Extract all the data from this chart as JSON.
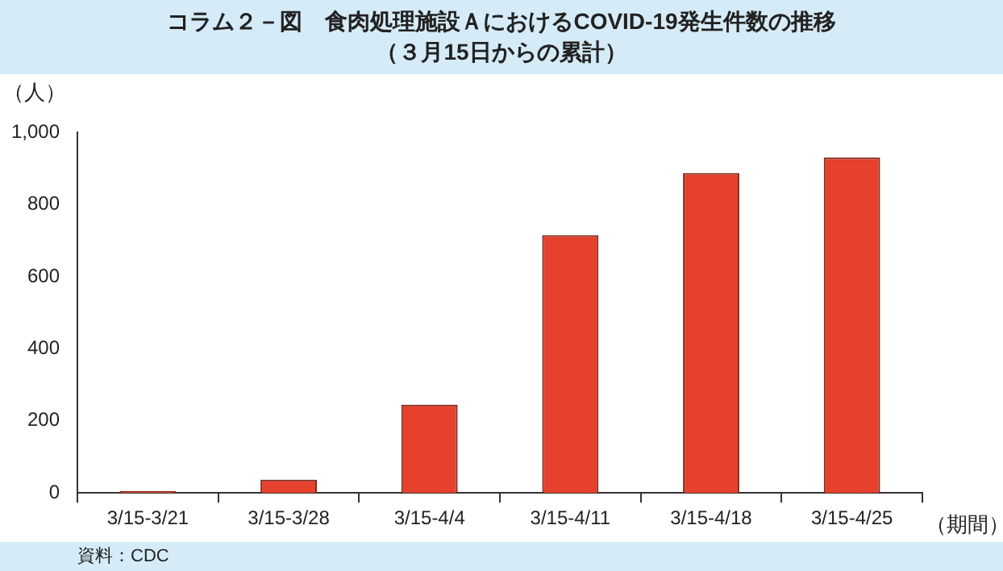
{
  "chart_data": {
    "type": "bar",
    "title": "コラム２－図　食肉処理施設ＡにおけるCOVID-19発生件数の推移",
    "subtitle": "（３月15日からの累計）",
    "ylabel": "（人）",
    "xlabel": "（期間）",
    "categories": [
      "3/15-3/21",
      "3/15-3/28",
      "3/15-4/4",
      "3/15-4/11",
      "3/15-4/18",
      "3/15-4/25"
    ],
    "values": [
      5,
      37,
      245,
      715,
      887,
      930
    ],
    "color": "#e5412d",
    "ylim": [
      0,
      1000
    ],
    "yticks": [
      0,
      200,
      400,
      600,
      800,
      {
        "value": 1000,
        "label": "1,000"
      }
    ],
    "grid": false,
    "annotations": [
      "資料：CDC"
    ]
  }
}
